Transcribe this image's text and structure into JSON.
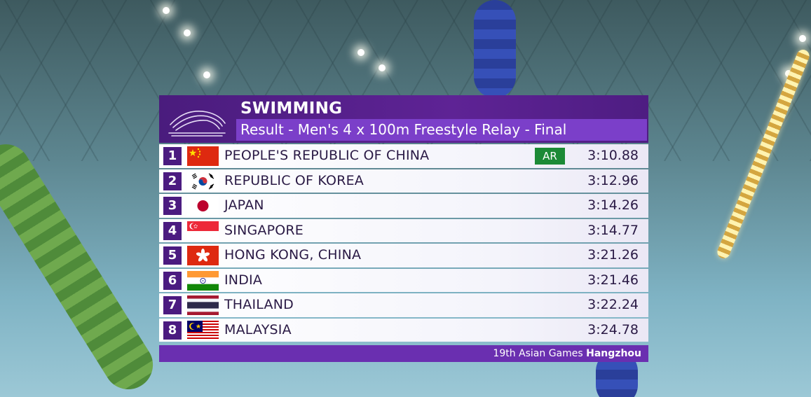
{
  "header": {
    "sport": "SWIMMING",
    "event": "Result - Men's 4 x 100m Freestyle Relay - Final"
  },
  "results": [
    {
      "rank": "1",
      "country": "PEOPLE'S REPUBLIC OF CHINA",
      "record": "AR",
      "time": "3:10.88",
      "flag": "china-flag-icon"
    },
    {
      "rank": "2",
      "country": "REPUBLIC OF KOREA",
      "record": "",
      "time": "3:12.96",
      "flag": "korea-flag-icon"
    },
    {
      "rank": "3",
      "country": "JAPAN",
      "record": "",
      "time": "3:14.26",
      "flag": "japan-flag-icon"
    },
    {
      "rank": "4",
      "country": "SINGAPORE",
      "record": "",
      "time": "3:14.77",
      "flag": "singapore-flag-icon"
    },
    {
      "rank": "5",
      "country": "HONG KONG, CHINA",
      "record": "",
      "time": "3:21.26",
      "flag": "hong-kong-flag-icon"
    },
    {
      "rank": "6",
      "country": "INDIA",
      "record": "",
      "time": "3:21.46",
      "flag": "india-flag-icon"
    },
    {
      "rank": "7",
      "country": "THAILAND",
      "record": "",
      "time": "3:22.24",
      "flag": "thailand-flag-icon"
    },
    {
      "rank": "8",
      "country": "MALAYSIA",
      "record": "",
      "time": "3:24.78",
      "flag": "malaysia-flag-icon"
    }
  ],
  "footer": {
    "prefix": "19th Asian Games",
    "city": "Hangzhou"
  },
  "colors": {
    "header_purple": "#4a1c7d",
    "event_purple": "#7b3fc9",
    "record_green": "#1c8a36"
  }
}
